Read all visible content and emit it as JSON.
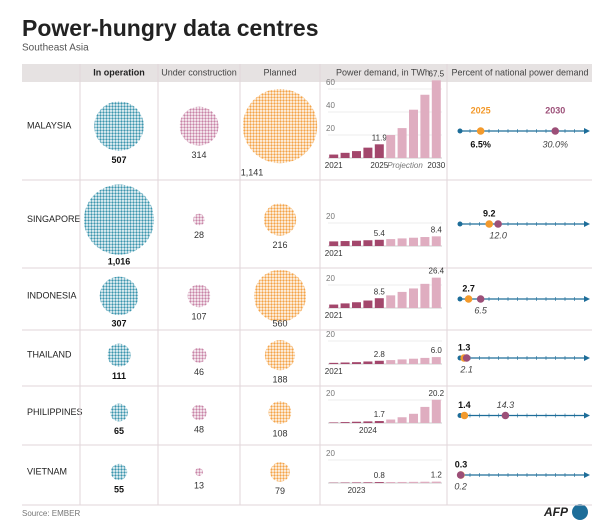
{
  "header": {
    "title": "Power-hungry data centres",
    "subtitle": "Southeast Asia"
  },
  "columns": [
    "In operation",
    "Under construction",
    "Planned",
    "Power demand, in TWh",
    "Percent of national power demand"
  ],
  "legend": [
    "2025",
    "2030"
  ],
  "colors": {
    "counts": [
      "#3b95ad",
      "#c883a6",
      "#f4a347"
    ],
    "y2025": "#f39a2c",
    "y2030": "#9c4f78",
    "line": "#1d6d99"
  },
  "percent_xlim": [
    0,
    40
  ],
  "rows": [
    {
      "country": "MALAYSIA",
      "counts": [
        507,
        314,
        {
          "value": 1141,
          "label": "1,141"
        }
      ],
      "demand": {
        "x": [
          2021,
          2022,
          2023,
          2024,
          2025,
          2026,
          2027,
          2028,
          2029,
          2030
        ],
        "values": [
          3,
          4.5,
          6,
          9,
          11.9,
          20,
          26,
          42,
          55,
          67.5
        ],
        "value_labels": [
          null,
          null,
          null,
          null,
          "11.9",
          null,
          null,
          null,
          null,
          "67.5"
        ],
        "bar_colors": [
          "#a3476c",
          "#a3476c",
          "#a3476c",
          "#a3476c",
          "#a3476c",
          "#dfadc0",
          "#dfadc0",
          "#dfadc0",
          "#dfadc0",
          "#dfadc0"
        ],
        "ylim": [
          0,
          70
        ],
        "yticks": [
          20,
          40,
          60
        ],
        "xticks": [
          2021,
          2025,
          2030
        ],
        "annotation": "Projection"
      },
      "percent": [
        {
          "value": 6.5,
          "label": "6.5%"
        },
        {
          "value": 30,
          "label": "30.0%"
        }
      ]
    },
    {
      "country": "SINGAPORE",
      "counts": [
        {
          "value": 1016,
          "label": "1,016"
        },
        28,
        216
      ],
      "demand": {
        "x": [
          2021,
          2022,
          2023,
          2024,
          2025,
          2026,
          2027,
          2028,
          2029,
          2030
        ],
        "values": [
          4,
          4.3,
          4.6,
          5,
          5.4,
          6,
          6.6,
          7.2,
          7.8,
          8.4
        ],
        "value_labels": [
          null,
          null,
          null,
          null,
          "5.4",
          null,
          null,
          null,
          null,
          "8.4"
        ],
        "bar_colors": [
          "#a3476c",
          "#a3476c",
          "#a3476c",
          "#a3476c",
          "#a3476c",
          "#dfadc0",
          "#dfadc0",
          "#dfadc0",
          "#dfadc0",
          "#dfadc0"
        ],
        "ylim": [
          0,
          30
        ],
        "yticks": [
          20
        ],
        "xticks": [
          2021
        ]
      },
      "percent": [
        {
          "value": 9.2,
          "label": "9.2"
        },
        {
          "value": 12,
          "label": "12.0"
        }
      ]
    },
    {
      "country": "INDONESIA",
      "counts": [
        307,
        107,
        560
      ],
      "demand": {
        "x": [
          2021,
          2022,
          2023,
          2024,
          2025,
          2026,
          2027,
          2028,
          2029,
          2030
        ],
        "values": [
          3,
          4,
          5,
          6.5,
          8.5,
          11,
          14,
          17,
          21,
          26.4
        ],
        "value_labels": [
          null,
          null,
          null,
          null,
          "8.5",
          null,
          null,
          null,
          null,
          "26.4"
        ],
        "bar_colors": [
          "#a3476c",
          "#a3476c",
          "#a3476c",
          "#a3476c",
          "#a3476c",
          "#dfadc0",
          "#dfadc0",
          "#dfadc0",
          "#dfadc0",
          "#dfadc0"
        ],
        "ylim": [
          0,
          30
        ],
        "yticks": [
          20
        ],
        "xticks": [
          2021
        ]
      },
      "percent": [
        {
          "value": 2.7,
          "label": "2.7"
        },
        {
          "value": 6.5,
          "label": "6.5"
        }
      ]
    },
    {
      "country": "THAILAND",
      "counts": [
        111,
        46,
        188
      ],
      "demand": {
        "x": [
          2021,
          2022,
          2023,
          2024,
          2025,
          2026,
          2027,
          2028,
          2029,
          2030
        ],
        "values": [
          1,
          1.3,
          1.6,
          2.2,
          2.8,
          3.4,
          4,
          4.6,
          5.3,
          6
        ],
        "value_labels": [
          null,
          null,
          null,
          null,
          "2.8",
          null,
          null,
          null,
          null,
          "6.0"
        ],
        "bar_colors": [
          "#a3476c",
          "#a3476c",
          "#a3476c",
          "#a3476c",
          "#a3476c",
          "#dfadc0",
          "#dfadc0",
          "#dfadc0",
          "#dfadc0",
          "#dfadc0"
        ],
        "ylim": [
          0,
          25
        ],
        "yticks": [
          20
        ],
        "xticks": [
          2021
        ]
      },
      "percent": [
        {
          "value": 1.3,
          "label": "1.3"
        },
        {
          "value": 2.1,
          "label": "2.1"
        }
      ]
    },
    {
      "country": "PHILIPPINES",
      "counts": [
        65,
        48,
        108
      ],
      "demand": {
        "x": [
          2021,
          2022,
          2023,
          2024,
          2025,
          2026,
          2027,
          2028,
          2029,
          2030
        ],
        "values": [
          0.5,
          0.8,
          1.1,
          1.4,
          1.7,
          3,
          5,
          8,
          14,
          20.2
        ],
        "value_labels": [
          null,
          null,
          null,
          null,
          "1.7",
          null,
          null,
          null,
          null,
          "20.2"
        ],
        "bar_colors": [
          "#a3476c",
          "#a3476c",
          "#a3476c",
          "#a3476c",
          "#a3476c",
          "#dfadc0",
          "#dfadc0",
          "#dfadc0",
          "#dfadc0",
          "#dfadc0"
        ],
        "ylim": [
          0,
          25
        ],
        "yticks": [
          20
        ],
        "xticks": [
          2024
        ]
      },
      "percent": [
        {
          "value": 1.4,
          "label": "1.4"
        },
        {
          "value": 14.3,
          "label": "14.3"
        }
      ]
    },
    {
      "country": "VIETNAM",
      "counts": [
        55,
        13,
        79
      ],
      "demand": {
        "x": [
          2021,
          2022,
          2023,
          2024,
          2025,
          2026,
          2027,
          2028,
          2029,
          2030
        ],
        "values": [
          0.3,
          0.4,
          0.5,
          0.6,
          0.8,
          0.85,
          0.9,
          1,
          1.1,
          1.2
        ],
        "value_labels": [
          null,
          null,
          null,
          null,
          "0.8",
          null,
          null,
          null,
          null,
          "1.2"
        ],
        "bar_colors": [
          "#a3476c",
          "#a3476c",
          "#a3476c",
          "#a3476c",
          "#a3476c",
          "#dfadc0",
          "#dfadc0",
          "#dfadc0",
          "#dfadc0",
          "#dfadc0"
        ],
        "ylim": [
          0,
          25
        ],
        "yticks": [
          20
        ],
        "xticks": [
          2023
        ]
      },
      "percent": [
        {
          "value": 0.3,
          "label": "0.3"
        },
        {
          "value": 0.2,
          "label": "0.2"
        }
      ]
    }
  ],
  "footer": {
    "source": "Source: EMBER",
    "logo": "AFP"
  }
}
